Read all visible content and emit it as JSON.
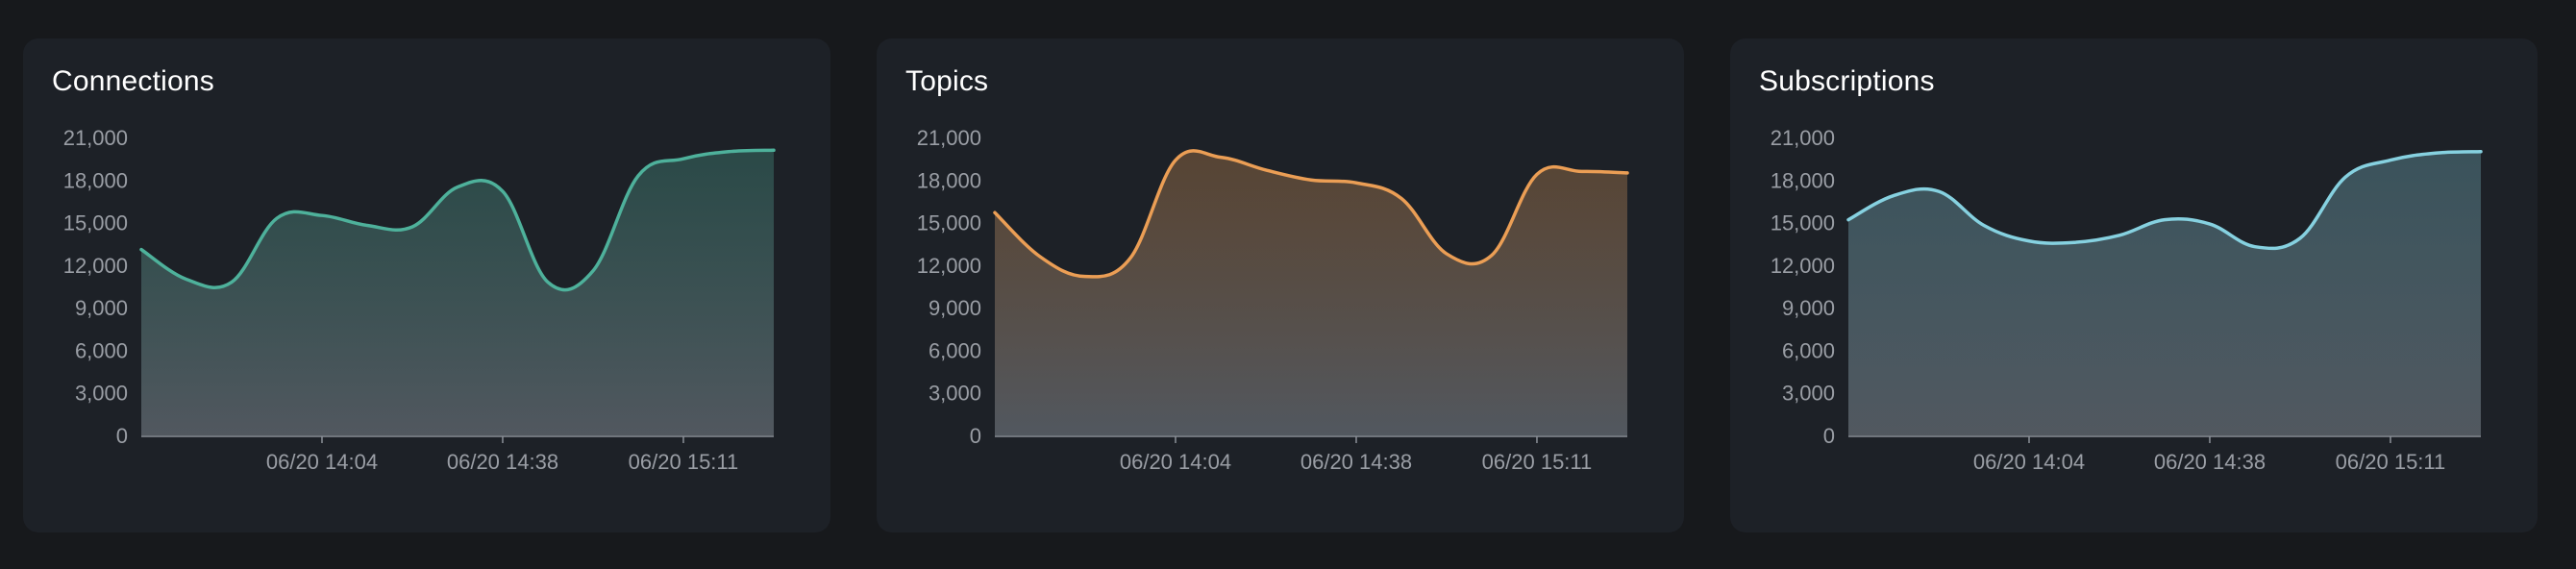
{
  "charts": [
    {
      "title": "Connections",
      "color": "#4eb19b",
      "chart_data": {
        "type": "area",
        "title": "Connections",
        "x_ticks": [
          "06/20 14:04",
          "06/20 14:38",
          "06/20 15:11"
        ],
        "y_ticks": [
          "0",
          "3,000",
          "6,000",
          "9,000",
          "12,000",
          "15,000",
          "18,000",
          "21,000"
        ],
        "ylim": [
          0,
          21000
        ],
        "grid": false,
        "series": [
          {
            "values": [
              13100,
              11000,
              10800,
              15300,
              15500,
              14800,
              14700,
              17500,
              17200,
              10800,
              11600,
              18300,
              19500,
              20000,
              20100
            ]
          }
        ]
      }
    },
    {
      "title": "Topics",
      "color": "#eb9e55",
      "chart_data": {
        "type": "area",
        "title": "Topics",
        "x_ticks": [
          "06/20 14:04",
          "06/20 14:38",
          "06/20 15:11"
        ],
        "y_ticks": [
          "0",
          "3,000",
          "6,000",
          "9,000",
          "12,000",
          "15,000",
          "18,000",
          "21,000"
        ],
        "ylim": [
          0,
          21000
        ],
        "grid": false,
        "series": [
          {
            "values": [
              15700,
              12600,
              11200,
              12500,
              19400,
              19600,
              18700,
              18000,
              17800,
              16700,
              12800,
              12700,
              18400,
              18600,
              18500
            ]
          }
        ]
      }
    },
    {
      "title": "Subscriptions",
      "color": "#86d1e0",
      "chart_data": {
        "type": "area",
        "title": "Subscriptions",
        "x_ticks": [
          "06/20 14:04",
          "06/20 14:38",
          "06/20 15:11"
        ],
        "y_ticks": [
          "0",
          "3,000",
          "6,000",
          "9,000",
          "12,000",
          "15,000",
          "18,000",
          "21,000"
        ],
        "ylim": [
          0,
          21000
        ],
        "grid": false,
        "series": [
          {
            "values": [
              15200,
              16900,
              17200,
              14800,
              13700,
              13600,
              14100,
              15200,
              14900,
              13300,
              13900,
              18200,
              19400,
              19900,
              20000
            ]
          }
        ]
      }
    }
  ]
}
